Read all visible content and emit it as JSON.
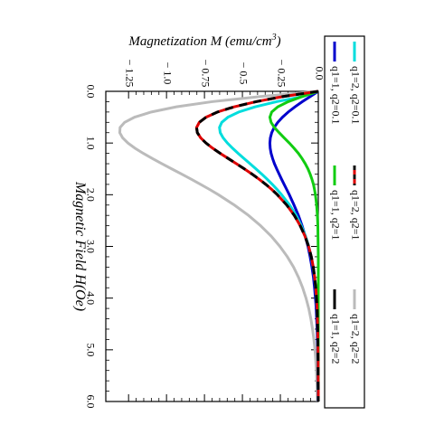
{
  "chart_data": {
    "type": "line",
    "orientation": "rotated-90-clockwise",
    "xlabel": "Magnetic Field H(Oe)",
    "ylabel": "Magnetization M (emu/cm³)",
    "xlabel_prefix": "Magnetization M (emu/cm",
    "xlabel_sup": "3",
    "xlabel_suffix": ")",
    "xlim": [
      0,
      6
    ],
    "ylim": [
      -1.4,
      0
    ],
    "x_ticks": [
      {
        "value": 0,
        "label": "0.0"
      },
      {
        "value": 1,
        "label": "1.0"
      },
      {
        "value": 2,
        "label": "2.0"
      },
      {
        "value": 3,
        "label": "3.0"
      },
      {
        "value": 4,
        "label": "4.0"
      },
      {
        "value": 5,
        "label": "5.0"
      },
      {
        "value": 6,
        "label": "6.0"
      }
    ],
    "y_ticks": [
      {
        "value": 0,
        "label": "0.0"
      },
      {
        "value": -0.25,
        "label": "− 0.25"
      },
      {
        "value": -0.5,
        "label": "− 0.5"
      },
      {
        "value": -0.75,
        "label": "− 0.75"
      },
      {
        "value": -1.0,
        "label": "− 1.0"
      },
      {
        "value": -1.25,
        "label": "− 1.25"
      }
    ],
    "legend_position": "top-right",
    "x": [
      0,
      0.1,
      0.2,
      0.3,
      0.4,
      0.5,
      0.6,
      0.7,
      0.8,
      0.9,
      1.0,
      1.1,
      1.2,
      1.3,
      1.4,
      1.5,
      1.6,
      1.7,
      1.8,
      1.9,
      2.0,
      2.2,
      2.4,
      2.6,
      2.8,
      3.0,
      3.2,
      3.4,
      3.6,
      3.8,
      4.0,
      4.2,
      4.4,
      4.6,
      4.8,
      5.0,
      5.2,
      5.4,
      5.6,
      5.8,
      6.0
    ],
    "series": [
      {
        "name": "q1=1, q2=0.1",
        "color": "#0000cc",
        "dash": "solid",
        "values": [
          0,
          -0.053,
          -0.105,
          -0.154,
          -0.198,
          -0.236,
          -0.267,
          -0.291,
          -0.307,
          -0.316,
          -0.319,
          -0.317,
          -0.311,
          -0.301,
          -0.289,
          -0.274,
          -0.258,
          -0.242,
          -0.225,
          -0.208,
          -0.191,
          -0.16,
          -0.131,
          -0.107,
          -0.086,
          -0.068,
          -0.054,
          -0.042,
          -0.032,
          -0.025,
          -0.019,
          -0.014,
          -0.011,
          -0.008,
          -0.006,
          -0.004,
          -0.003,
          -0.002,
          -0.002,
          -0.001,
          -0.001
        ]
      },
      {
        "name": "q1=2, q2=0.1",
        "color": "#00dddd",
        "dash": "solid",
        "values": [
          0,
          -0.102,
          -0.275,
          -0.417,
          -0.524,
          -0.595,
          -0.636,
          -0.651,
          -0.646,
          -0.627,
          -0.599,
          -0.565,
          -0.528,
          -0.489,
          -0.45,
          -0.411,
          -0.373,
          -0.337,
          -0.303,
          -0.271,
          -0.242,
          -0.189,
          -0.146,
          -0.112,
          -0.084,
          -0.063,
          -0.047,
          -0.034,
          -0.025,
          -0.018,
          -0.013,
          -0.009,
          -0.006,
          -0.004,
          -0.003,
          -0.002,
          -0.002,
          -0.001,
          -0.001,
          -0.001,
          0
        ]
      },
      {
        "name": "q1=1, q2=1",
        "color": "#11cc11",
        "dash": "solid",
        "values": [
          0,
          -0.105,
          -0.198,
          -0.267,
          -0.307,
          -0.319,
          -0.311,
          -0.289,
          -0.258,
          -0.225,
          -0.191,
          -0.16,
          -0.131,
          -0.107,
          -0.086,
          -0.068,
          -0.054,
          -0.042,
          -0.032,
          -0.025,
          -0.019,
          -0.011,
          -0.006,
          -0.003,
          -0.002,
          -0.001,
          0,
          0,
          0,
          0,
          0,
          0,
          0,
          0,
          0,
          0,
          0,
          0,
          0,
          0,
          0
        ]
      },
      {
        "name": "q1=2, q2=1",
        "color": "#dd0000",
        "dash": "solid",
        "overlay": {
          "color": "#111111",
          "dash": "8 6"
        },
        "values": [
          0,
          -0.232,
          -0.41,
          -0.555,
          -0.664,
          -0.739,
          -0.784,
          -0.802,
          -0.797,
          -0.775,
          -0.74,
          -0.696,
          -0.646,
          -0.593,
          -0.54,
          -0.487,
          -0.437,
          -0.39,
          -0.346,
          -0.306,
          -0.27,
          -0.208,
          -0.158,
          -0.119,
          -0.088,
          -0.064,
          -0.046,
          -0.033,
          -0.024,
          -0.017,
          -0.012,
          -0.008,
          -0.006,
          -0.004,
          -0.003,
          -0.002,
          -0.001,
          -0.001,
          -0.001,
          0,
          0
        ]
      },
      {
        "name": "q1=1, q2=2",
        "color": "#000000",
        "dash": "solid",
        "values": [
          0,
          -0.232,
          -0.41,
          -0.555,
          -0.664,
          -0.739,
          -0.784,
          -0.802,
          -0.797,
          -0.775,
          -0.74,
          -0.696,
          -0.646,
          -0.593,
          -0.54,
          -0.487,
          -0.437,
          -0.39,
          -0.346,
          -0.306,
          -0.27,
          -0.208,
          -0.158,
          -0.119,
          -0.088,
          -0.064,
          -0.046,
          -0.033,
          -0.024,
          -0.017,
          -0.012,
          -0.008,
          -0.006,
          -0.004,
          -0.003,
          -0.002,
          -0.001,
          -0.001,
          -0.001,
          0,
          0
        ]
      },
      {
        "name": "q1=2, q2=2",
        "color": "#bbbbbb",
        "dash": "solid",
        "values": [
          0,
          -0.38,
          -0.7,
          -0.935,
          -1.1,
          -1.21,
          -1.276,
          -1.306,
          -1.308,
          -1.289,
          -1.254,
          -1.208,
          -1.153,
          -1.093,
          -1.03,
          -0.966,
          -0.901,
          -0.837,
          -0.775,
          -0.715,
          -0.658,
          -0.553,
          -0.46,
          -0.38,
          -0.311,
          -0.253,
          -0.204,
          -0.163,
          -0.13,
          -0.103,
          -0.081,
          -0.063,
          -0.049,
          -0.038,
          -0.029,
          -0.022,
          -0.017,
          -0.013,
          -0.01,
          -0.007,
          -0.006
        ]
      }
    ]
  }
}
